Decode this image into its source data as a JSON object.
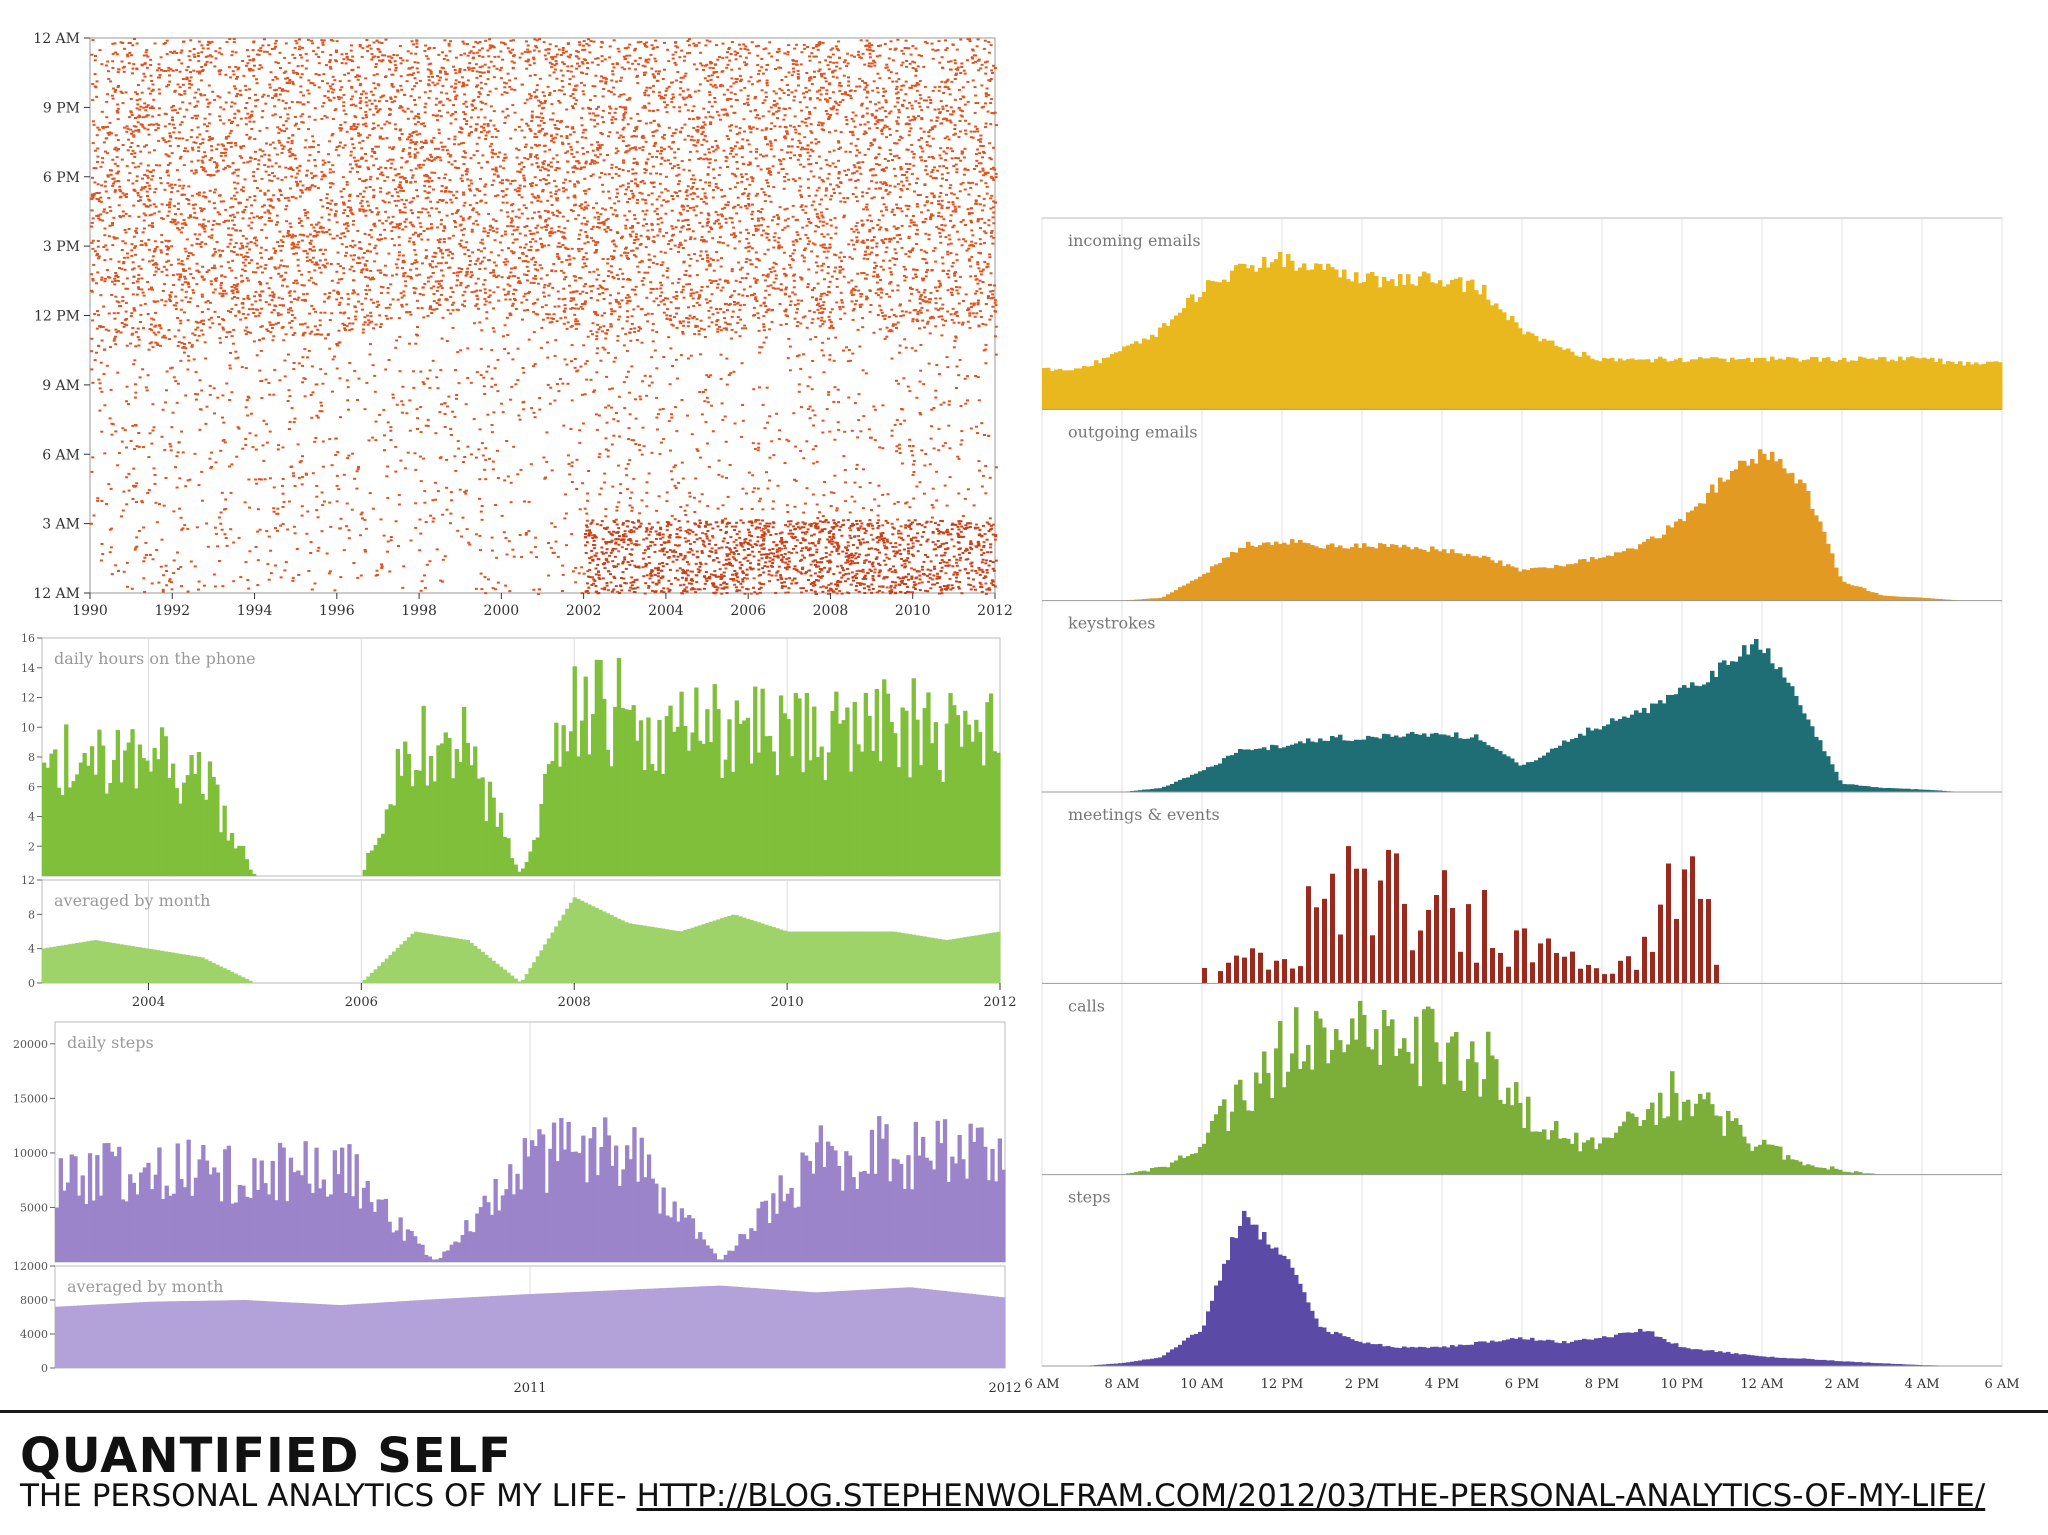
{
  "caption": {
    "title": "QUANTIFIED SELF",
    "subtitle_prefix": "THE PERSONAL ANALYTICS OF MY LIFE- ",
    "link": "HTTP://BLOG.STEPHENWOLFRAM.COM/2012/03/THE-PERSONAL-ANALYTICS-OF-MY-LIFE/"
  },
  "colors": {
    "email_scatter": "#e0531f",
    "phone": "#7fbf3a",
    "steps_purple": "#9b84c9",
    "incoming": "#e8b81e",
    "outgoing": "#e29a22",
    "keystrokes": "#1f6e75",
    "meetings": "#9a2a1e",
    "calls": "#7cae3a",
    "steps_daily": "#5b4ba6"
  },
  "chart_data": [
    {
      "type": "scatter",
      "title": "",
      "x_ticks": [
        "1990",
        "1992",
        "1994",
        "1996",
        "1998",
        "2000",
        "2002",
        "2004",
        "2006",
        "2008",
        "2010",
        "2012"
      ],
      "y_ticks": [
        "12 AM",
        "3 AM",
        "6 AM",
        "9 AM",
        "12 PM",
        "3 PM",
        "6 PM",
        "9 PM",
        "12 AM"
      ],
      "xlim": [
        1990,
        2012
      ],
      "ylim": [
        0,
        24
      ],
      "band_estimates": [
        {
          "x": 1990,
          "active_from": 10.5,
          "active_to": 24
        },
        {
          "x": 1995,
          "active_from": 11.0,
          "active_to": 24
        },
        {
          "x": 2000,
          "active_from": 12.5,
          "active_to": 24
        },
        {
          "x": 2002,
          "active_from": 11.0,
          "active_to": 24
        },
        {
          "x": 2008,
          "active_from": 11.5,
          "active_to": 24
        },
        {
          "x": 2012,
          "active_from": 11.5,
          "active_to": 24
        }
      ]
    },
    {
      "type": "area",
      "title": "daily hours on the phone",
      "y_ticks": [
        "2",
        "4",
        "6",
        "8",
        "10",
        "12",
        "14",
        "16"
      ],
      "ylim": [
        0,
        16
      ],
      "x": [
        2003.0,
        2003.5,
        2004.0,
        2004.5,
        2005.0,
        2005.5,
        2006.0,
        2006.5,
        2007.0,
        2007.5,
        2008.0,
        2008.5,
        2009.0,
        2009.5,
        2010.0,
        2010.5,
        2011.0,
        2011.5,
        2012.0
      ],
      "values": [
        9,
        9,
        9,
        8,
        0,
        0,
        0,
        11,
        10,
        0,
        14,
        13,
        11,
        12,
        11,
        11,
        12,
        11,
        11
      ]
    },
    {
      "type": "area",
      "title": "averaged by month",
      "x_ticks": [
        "2004",
        "2006",
        "2008",
        "2010",
        "2012"
      ],
      "y_ticks": [
        "0",
        "4",
        "8",
        "12"
      ],
      "ylim": [
        0,
        12
      ],
      "x": [
        2003.0,
        2003.5,
        2004.0,
        2004.5,
        2005.0,
        2005.5,
        2006.0,
        2006.5,
        2007.0,
        2007.5,
        2008.0,
        2008.5,
        2009.0,
        2009.5,
        2010.0,
        2010.5,
        2011.0,
        2011.5,
        2012.0
      ],
      "values": [
        4,
        5,
        4,
        3,
        0,
        0,
        0,
        6,
        5,
        0,
        10,
        7,
        6,
        8,
        6,
        6,
        6,
        5,
        6
      ]
    },
    {
      "type": "area",
      "title": "daily steps",
      "y_ticks": [
        "5000",
        "10000",
        "15000",
        "20000"
      ],
      "ylim": [
        0,
        22000
      ],
      "x": [
        2010.0,
        2010.2,
        2010.4,
        2010.6,
        2010.8,
        2011.0,
        2011.2,
        2011.4,
        2011.6,
        2011.8,
        2012.0
      ],
      "values": [
        9000,
        10000,
        9500,
        10500,
        0,
        11000,
        12500,
        0,
        11000,
        12000,
        11000
      ]
    },
    {
      "type": "area",
      "title": "averaged by month",
      "x_ticks": [
        "2011",
        "2012"
      ],
      "y_ticks": [
        "0",
        "4000",
        "8000",
        "12000"
      ],
      "ylim": [
        0,
        12000
      ],
      "x": [
        2010.0,
        2010.2,
        2010.4,
        2010.6,
        2010.8,
        2011.0,
        2011.2,
        2011.4,
        2011.6,
        2011.8,
        2012.0
      ],
      "values": [
        7200,
        7800,
        8000,
        7400,
        8100,
        8700,
        9200,
        9700,
        8900,
        9500,
        8300
      ]
    },
    {
      "type": "area",
      "x_ticks": [
        "6 AM",
        "8 AM",
        "10 AM",
        "12 PM",
        "2 PM",
        "4 PM",
        "6 PM",
        "8 PM",
        "10 PM",
        "12 AM",
        "2 AM",
        "4 AM",
        "6 AM"
      ],
      "xlim": [
        6,
        30
      ],
      "x": [
        6,
        7,
        8,
        9,
        10,
        11,
        12,
        13,
        14,
        15,
        16,
        17,
        18,
        19,
        20,
        21,
        22,
        23,
        24,
        25,
        26,
        27,
        28,
        29,
        30
      ],
      "series": [
        {
          "name": "incoming emails",
          "values": [
            2,
            2,
            3,
            4,
            6,
            7,
            7.5,
            7,
            6.5,
            6.5,
            6.5,
            6,
            4,
            3,
            2.5,
            2.5,
            2.5,
            2.5,
            2.5,
            2.5,
            2.5,
            2.5,
            2.5,
            2.3,
            2.3
          ]
        },
        {
          "name": "outgoing emails",
          "values": [
            0,
            0,
            0,
            0.3,
            2.5,
            5.5,
            6,
            5.5,
            5.5,
            5.5,
            5,
            4.5,
            3,
            3.5,
            4.5,
            5.5,
            8,
            12,
            15,
            12,
            2,
            0.5,
            0.3,
            0,
            0
          ]
        },
        {
          "name": "keystrokes",
          "values": [
            0,
            0,
            0,
            0.5,
            2.5,
            5,
            5.5,
            6.5,
            6.5,
            7,
            7,
            6.5,
            3,
            6,
            8,
            9.5,
            12,
            15,
            18,
            10,
            1,
            0.5,
            0.3,
            0,
            0
          ]
        },
        {
          "name": "meetings & events",
          "values": [
            0,
            0,
            0,
            0,
            0.5,
            1,
            2,
            4,
            5,
            4,
            4,
            3,
            2,
            1,
            1,
            2,
            5,
            2,
            1.5,
            0.5,
            0,
            0,
            0,
            0,
            0
          ]
        },
        {
          "name": "calls",
          "values": [
            0,
            0,
            0,
            0.5,
            2,
            6,
            9,
            10,
            10,
            9.5,
            9.5,
            8.5,
            5,
            3,
            2,
            5,
            6,
            4,
            2,
            1,
            0.3,
            0,
            0,
            0,
            0
          ]
        },
        {
          "name": "steps",
          "values": [
            0,
            0,
            0.3,
            1,
            4,
            16,
            12,
            4,
            2.5,
            2,
            2,
            2.5,
            3,
            2.5,
            3,
            4,
            2,
            1.5,
            1,
            0.8,
            0.5,
            0.3,
            0.1,
            0,
            0
          ]
        }
      ]
    }
  ]
}
